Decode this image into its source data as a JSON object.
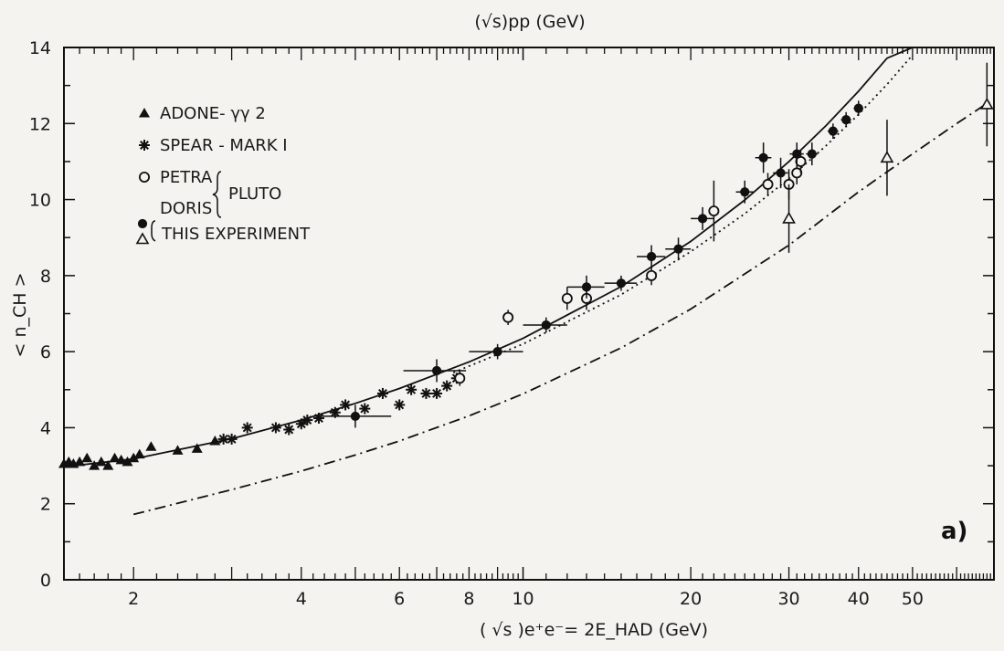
{
  "chart_data": {
    "type": "scatter",
    "title": "",
    "top_axis_label": "(√s)pp (GeV)",
    "xlabel": "( √s )e⁺e⁻= 2E_HAD (GeV)",
    "ylabel": "< n_CH >",
    "x_scale": "log",
    "xlim": [
      1.5,
      70
    ],
    "ylim": [
      0,
      14
    ],
    "x_tick_labels": [
      "2",
      "4",
      "6",
      "8",
      "10",
      "20",
      "30",
      "40",
      "50"
    ],
    "y_tick_labels": [
      "0",
      "2",
      "4",
      "6",
      "8",
      "10",
      "12",
      "14"
    ],
    "panel_label": "a)",
    "grid": false,
    "legend_placement": "top-left",
    "legend": [
      {
        "marker": "triangle-filled",
        "text": "ADONE- γγ 2"
      },
      {
        "marker": "star",
        "text": "SPEAR - MARK I"
      },
      {
        "marker": "circle-open",
        "text": "PETRA"
      },
      {
        "marker": "none",
        "text": "DORIS"
      },
      {
        "marker": "none",
        "text": "PLUTO"
      },
      {
        "marker": "circle-filled+triangle-open",
        "text": "THIS EXPERIMENT"
      }
    ],
    "series": [
      {
        "name": "ADONE- γγ 2",
        "marker": "triangle-filled",
        "x": [
          1.5,
          1.53,
          1.56,
          1.6,
          1.65,
          1.7,
          1.75,
          1.8,
          1.85,
          1.9,
          1.95,
          2.0,
          2.05,
          2.15,
          2.4,
          2.6,
          2.8
        ],
        "y": [
          3.05,
          3.1,
          3.05,
          3.1,
          3.2,
          3.0,
          3.1,
          3.0,
          3.2,
          3.15,
          3.1,
          3.2,
          3.3,
          3.5,
          3.4,
          3.45,
          3.65
        ]
      },
      {
        "name": "SPEAR - MARK I",
        "marker": "star",
        "x": [
          2.9,
          3.0,
          3.2,
          3.6,
          3.8,
          4.0,
          4.1,
          4.3,
          4.6,
          4.8,
          5.2,
          5.6,
          6.0,
          6.3,
          6.7,
          7.0,
          7.3,
          7.6
        ],
        "y": [
          3.7,
          3.7,
          4.0,
          4.0,
          3.95,
          4.1,
          4.2,
          4.25,
          4.4,
          4.6,
          4.5,
          4.9,
          4.6,
          5.0,
          4.9,
          4.9,
          5.1,
          5.3
        ]
      },
      {
        "name": "PETRA / DORIS (PLUTO)",
        "marker": "circle-open",
        "x": [
          7.7,
          9.4,
          12.0,
          13.0,
          17.0,
          22.0,
          27.5,
          30.0,
          31.0,
          31.5
        ],
        "y": [
          5.3,
          6.9,
          7.4,
          7.4,
          8.0,
          9.7,
          10.4,
          10.4,
          10.7,
          11.0
        ],
        "yerr": [
          0.2,
          0.2,
          0.3,
          0.3,
          0.25,
          0.8,
          0.3,
          0.4,
          0.3,
          0.3
        ]
      },
      {
        "name": "THIS EXPERIMENT (●)",
        "marker": "circle-filled",
        "x": [
          5.0,
          7.0,
          9.0,
          11.0,
          13.0,
          15.0,
          17.0,
          19.0,
          21.0,
          25.0,
          27.0,
          29.0,
          31.0,
          33.0,
          36.0,
          38.0,
          40.0
        ],
        "y": [
          4.3,
          5.5,
          6.0,
          6.7,
          7.7,
          7.8,
          8.5,
          8.7,
          9.5,
          10.2,
          11.1,
          10.7,
          11.2,
          11.2,
          11.8,
          12.1,
          12.4
        ],
        "xerr": [
          0.8,
          0.9,
          1.0,
          1.0,
          1.0,
          1.0,
          1.0,
          1.0,
          1.0,
          0.9,
          0.9,
          0.9,
          0.9,
          0.8,
          0.8,
          0.8,
          0.8
        ],
        "yerr": [
          0.3,
          0.3,
          0.2,
          0.2,
          0.3,
          0.2,
          0.3,
          0.3,
          0.3,
          0.3,
          0.4,
          0.4,
          0.3,
          0.3,
          0.2,
          0.2,
          0.2
        ]
      },
      {
        "name": "THIS EXPERIMENT (△)",
        "marker": "triangle-open",
        "x": [
          30.0,
          45.0,
          68.0
        ],
        "y": [
          9.5,
          11.1,
          12.5
        ],
        "yerr": [
          0.9,
          1.0,
          1.1
        ]
      }
    ],
    "curves": [
      {
        "style": "solid",
        "x": [
          1.5,
          2,
          3,
          4,
          5,
          6,
          8,
          10,
          15,
          20,
          25,
          30,
          35,
          40,
          45,
          50
        ],
        "y": [
          2.97,
          3.18,
          3.71,
          4.2,
          4.64,
          5.03,
          5.73,
          6.35,
          7.71,
          8.9,
          9.99,
          11.0,
          11.95,
          12.85,
          13.72,
          14.0
        ]
      },
      {
        "style": "dotted",
        "x": [
          7.5,
          10,
          15,
          20,
          25,
          30,
          35,
          40,
          45,
          50
        ],
        "y": [
          5.45,
          6.2,
          7.5,
          8.63,
          9.63,
          10.55,
          11.42,
          12.24,
          13.03,
          13.8
        ]
      },
      {
        "style": "dash-dot",
        "x": [
          2,
          3,
          4,
          5,
          6,
          8,
          10,
          15,
          20,
          30,
          40,
          50,
          60,
          70
        ],
        "y": [
          1.72,
          2.37,
          2.86,
          3.28,
          3.65,
          4.31,
          4.89,
          6.1,
          7.12,
          8.8,
          10.2,
          11.2,
          12.0,
          12.65
        ]
      }
    ]
  }
}
